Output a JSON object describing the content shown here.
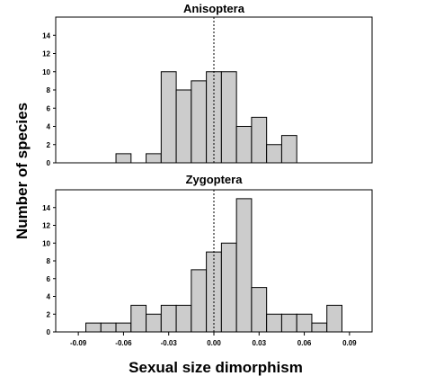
{
  "chart_data": {
    "type": "bar",
    "xlabel": "Sexual size dimorphism",
    "ylabel": "Number of species",
    "bin_width": 0.01,
    "xlim": [
      -0.105,
      0.105
    ],
    "x_ticks": [
      "-0.09",
      "-0.06",
      "-0.03",
      "0.00",
      "0.03",
      "0.06",
      "0.09"
    ],
    "x_tick_values": [
      -0.09,
      -0.06,
      -0.03,
      0.0,
      0.03,
      0.06,
      0.09
    ],
    "reference_line_x": 0.0,
    "panels": [
      {
        "title": "Anisoptera",
        "ylim": [
          0,
          16
        ],
        "y_ticks": [
          "0",
          "2",
          "4",
          "6",
          "8",
          "10",
          "12",
          "14"
        ],
        "bins": [
          {
            "x": -0.06,
            "count": 1
          },
          {
            "x": -0.04,
            "count": 1
          },
          {
            "x": -0.03,
            "count": 10
          },
          {
            "x": -0.02,
            "count": 8
          },
          {
            "x": -0.01,
            "count": 9
          },
          {
            "x": 0.0,
            "count": 10
          },
          {
            "x": 0.01,
            "count": 10
          },
          {
            "x": 0.02,
            "count": 4
          },
          {
            "x": 0.03,
            "count": 5
          },
          {
            "x": 0.04,
            "count": 2
          },
          {
            "x": 0.05,
            "count": 3
          }
        ]
      },
      {
        "title": "Zygoptera",
        "ylim": [
          0,
          16
        ],
        "y_ticks": [
          "0",
          "2",
          "4",
          "6",
          "8",
          "10",
          "12",
          "14"
        ],
        "bins": [
          {
            "x": -0.08,
            "count": 1
          },
          {
            "x": -0.07,
            "count": 1
          },
          {
            "x": -0.06,
            "count": 1
          },
          {
            "x": -0.05,
            "count": 3
          },
          {
            "x": -0.04,
            "count": 2
          },
          {
            "x": -0.03,
            "count": 3
          },
          {
            "x": -0.02,
            "count": 3
          },
          {
            "x": -0.01,
            "count": 7
          },
          {
            "x": 0.0,
            "count": 9
          },
          {
            "x": 0.01,
            "count": 10
          },
          {
            "x": 0.02,
            "count": 15
          },
          {
            "x": 0.03,
            "count": 5
          },
          {
            "x": 0.04,
            "count": 2
          },
          {
            "x": 0.05,
            "count": 2
          },
          {
            "x": 0.06,
            "count": 2
          },
          {
            "x": 0.07,
            "count": 1
          },
          {
            "x": 0.08,
            "count": 3
          }
        ]
      }
    ],
    "bar_color": "#cccccc",
    "edge_color": "#000000",
    "grid": false
  }
}
